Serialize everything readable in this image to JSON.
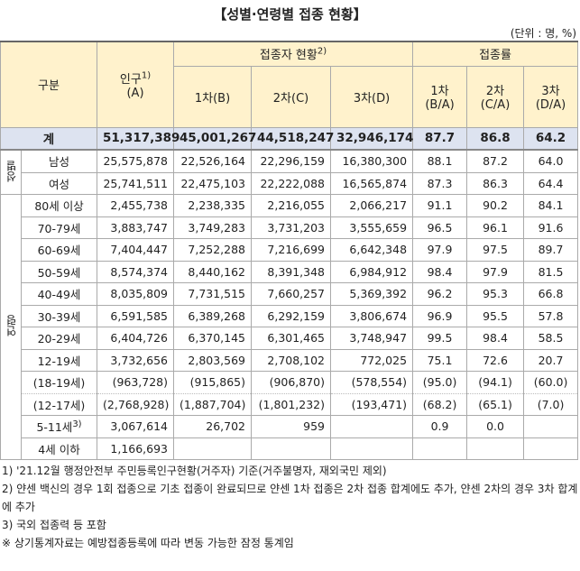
{
  "title": "【성별·연령별 접종 현황】",
  "unit": "(단위 : 명, %)",
  "header": {
    "category": "구분",
    "population": {
      "label": "인구",
      "note": "1)",
      "code": "(A)"
    },
    "vaccinated": {
      "label": "접종자 현황",
      "note": "2)",
      "columns": [
        "1차(B)",
        "2차(C)",
        "3차(D)"
      ]
    },
    "rate": {
      "label": "접종률",
      "columns": [
        [
          "1차",
          "(B/A)"
        ],
        [
          "2차",
          "(C/A)"
        ],
        [
          "3차",
          "(D/A)"
        ]
      ]
    }
  },
  "total": {
    "label": "계",
    "cells": [
      "51,317,389",
      "45,001,267",
      "44,518,247",
      "32,946,174",
      "87.7",
      "86.8",
      "64.2"
    ]
  },
  "groups": [
    {
      "label": "성별",
      "rows": [
        {
          "label": "남성",
          "cells": [
            "25,575,878",
            "22,526,164",
            "22,296,159",
            "16,380,300",
            "88.1",
            "87.2",
            "64.0"
          ]
        },
        {
          "label": "여성",
          "cells": [
            "25,741,511",
            "22,475,103",
            "22,222,088",
            "16,565,874",
            "87.3",
            "86.3",
            "64.4"
          ]
        }
      ]
    },
    {
      "label": "연령",
      "rows": [
        {
          "label": "80세 이상",
          "cells": [
            "2,455,738",
            "2,238,335",
            "2,216,055",
            "2,066,217",
            "91.1",
            "90.2",
            "84.1"
          ]
        },
        {
          "label": "70-79세",
          "cells": [
            "3,883,747",
            "3,749,283",
            "3,731,203",
            "3,555,659",
            "96.5",
            "96.1",
            "91.6"
          ]
        },
        {
          "label": "60-69세",
          "cells": [
            "7,404,447",
            "7,252,288",
            "7,216,699",
            "6,642,348",
            "97.9",
            "97.5",
            "89.7"
          ]
        },
        {
          "label": "50-59세",
          "cells": [
            "8,574,374",
            "8,440,162",
            "8,391,348",
            "6,984,912",
            "98.4",
            "97.9",
            "81.5"
          ]
        },
        {
          "label": "40-49세",
          "cells": [
            "8,035,809",
            "7,731,515",
            "7,660,257",
            "5,369,392",
            "96.2",
            "95.3",
            "66.8"
          ]
        },
        {
          "label": "30-39세",
          "cells": [
            "6,591,585",
            "6,389,268",
            "6,292,159",
            "3,806,674",
            "96.9",
            "95.5",
            "57.8"
          ]
        },
        {
          "label": "20-29세",
          "cells": [
            "6,404,726",
            "6,370,145",
            "6,301,465",
            "3,748,947",
            "99.5",
            "98.4",
            "58.5"
          ]
        },
        {
          "label": "12-19세",
          "cells": [
            "3,732,656",
            "2,803,569",
            "2,708,102",
            "772,025",
            "75.1",
            "72.6",
            "20.7"
          ]
        },
        {
          "label": "(18-19세)",
          "cells": [
            "(963,728)",
            "(915,865)",
            "(906,870)",
            "(578,554)",
            "(95.0)",
            "(94.1)",
            "(60.0)"
          ]
        },
        {
          "label": "(12-17세)",
          "cells": [
            "(2,768,928)",
            "(1,887,704)",
            "(1,801,232)",
            "(193,471)",
            "(68.2)",
            "(65.1)",
            "(7.0)"
          ]
        },
        {
          "label": "5-11세",
          "note": "3)",
          "cells": [
            "3,067,614",
            "26,702",
            "959",
            null,
            "0.9",
            "0.0",
            null
          ]
        },
        {
          "label": "4세 이하",
          "cells": [
            "1,166,693",
            null,
            null,
            null,
            null,
            null,
            null
          ]
        }
      ]
    }
  ],
  "notes": [
    "1) '21.12월 행정안전부 주민등록인구현황(거주자) 기준(거주불명자, 재외국민 제외)",
    "2) 얀센 백신의 경우 1회 접종으로 기초 접종이 완료되므로 얀센 1차 접종은 2차 접종 합계에도 추가, 얀센 2차의 경우 3차 합계에 추가",
    "3) 국외 접종력 등 포함",
    "※ 상기통계자료는 예방접종등록에 따라 변동 가능한 잠정 통계임"
  ]
}
